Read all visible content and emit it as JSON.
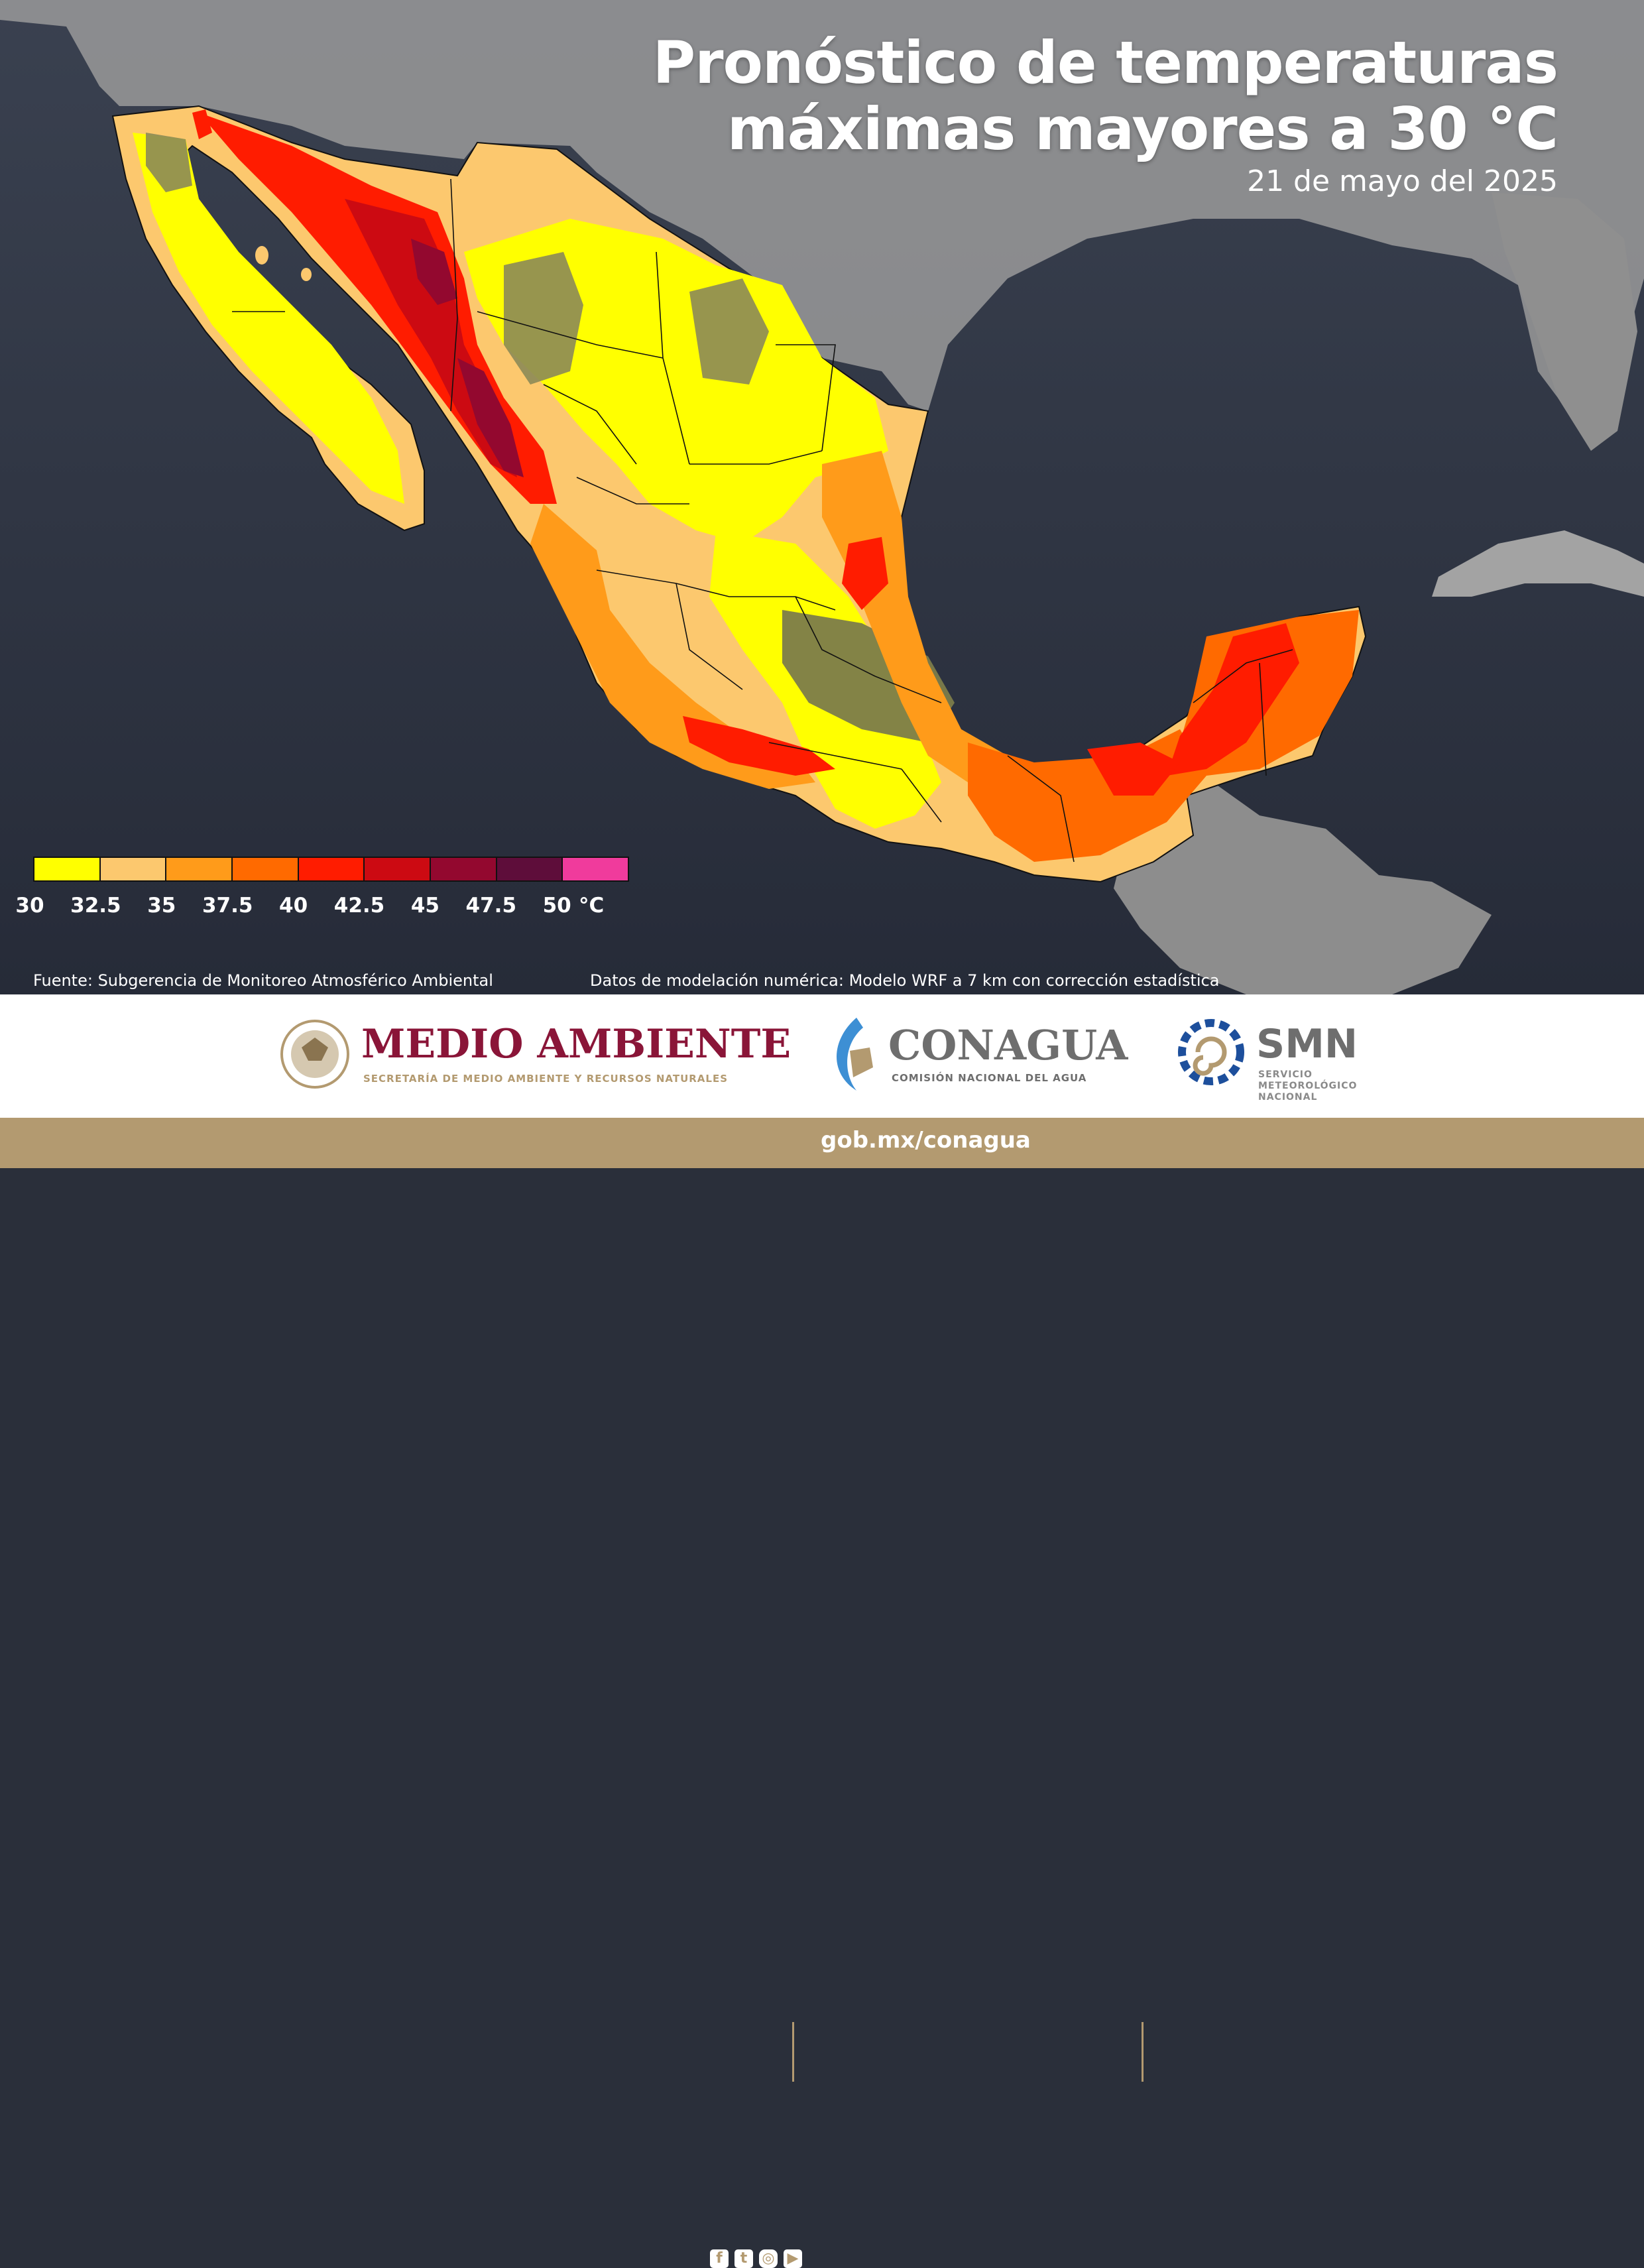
{
  "title_line1": "Pronóstico de temperaturas",
  "title_line2": "máximas mayores a 30 °C",
  "date": "21 de mayo del 2025",
  "legend": {
    "colors": [
      "#ffff00",
      "#fcc86e",
      "#ff9b1a",
      "#ff6a00",
      "#ff1c00",
      "#cc0a12",
      "#93082f",
      "#5e0d3a",
      "#f03b9c"
    ],
    "ticks": [
      "30",
      "32.5",
      "35",
      "37.5",
      "40",
      "42.5",
      "45",
      "47.5",
      "50"
    ],
    "unit": "°C"
  },
  "source_note": "Fuente: Subgerencia de Monitoreo Atmosférico Ambiental",
  "model_note": "Datos de modelación numérica: Modelo WRF a 7 km con corrección estadística",
  "logos": {
    "medio_ambiente": "MEDIO AMBIENTE",
    "medio_ambiente_sub": "SECRETARÍA DE MEDIO AMBIENTE Y RECURSOS NATURALES",
    "conagua": "CONAGUA",
    "conagua_sub": "COMISIÓN NACIONAL DEL AGUA",
    "smn": "SMN",
    "smn_sub1": "SERVICIO",
    "smn_sub2": "METEOROLÓGICO",
    "smn_sub3": "NACIONAL"
  },
  "footer": {
    "social_icons": [
      "facebook-icon",
      "twitter-icon",
      "instagram-icon",
      "youtube-icon"
    ],
    "website": "gob.mx/conagua"
  }
}
